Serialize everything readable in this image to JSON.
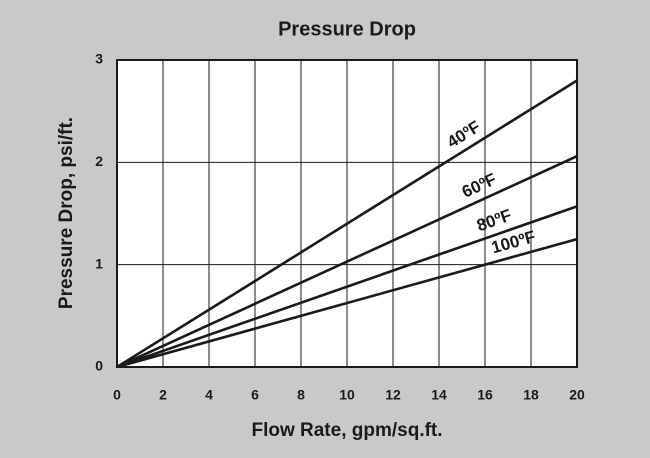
{
  "chart_data": {
    "type": "line",
    "title": "Pressure Drop",
    "x_label": "Flow Rate, gpm/sq.ft.",
    "y_label": "Pressure Drop, psi/ft.",
    "x": [
      0,
      20
    ],
    "series": [
      {
        "name": "40ºF",
        "color": "#1a1a1a",
        "values": [
          0,
          2.8
        ]
      },
      {
        "name": "60ºF",
        "color": "#1a1a1a",
        "values": [
          0,
          2.06
        ]
      },
      {
        "name": "80ºF",
        "color": "#1a1a1a",
        "values": [
          0,
          1.57
        ]
      },
      {
        "name": "100ºF",
        "color": "#1a1a1a",
        "values": [
          0,
          1.25
        ]
      }
    ],
    "xlim": [
      0,
      20
    ],
    "xticks": [
      0,
      2,
      4,
      6,
      8,
      10,
      12,
      14,
      16,
      18,
      20
    ],
    "ylim": [
      0,
      3
    ],
    "yticks": [
      0,
      1,
      2,
      3
    ],
    "grid": true
  }
}
